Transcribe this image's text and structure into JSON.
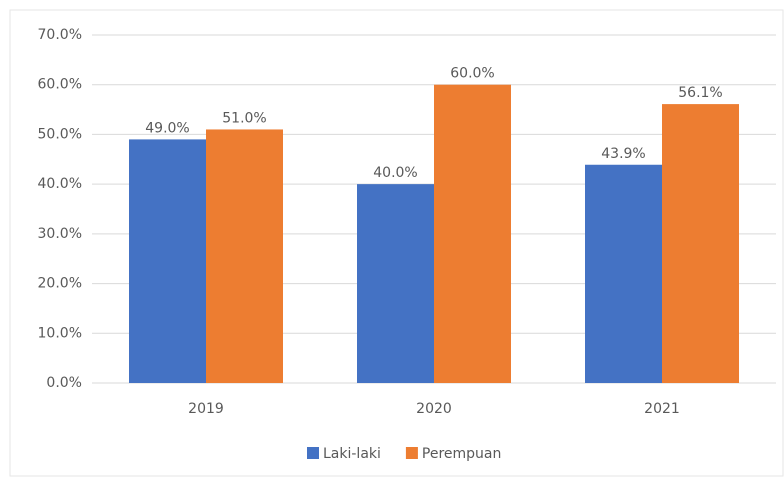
{
  "chart_data": {
    "type": "bar",
    "categories": [
      "2019",
      "2020",
      "2021"
    ],
    "series": [
      {
        "name": "Laki-laki",
        "color": "#4472c4",
        "values": [
          49.0,
          40.0,
          43.9
        ],
        "value_labels": [
          "49.0%",
          "40.0%",
          "43.9%"
        ]
      },
      {
        "name": "Perempuan",
        "color": "#ed7d31",
        "values": [
          51.0,
          60.0,
          56.1
        ],
        "value_labels": [
          "51.0%",
          "60.0%",
          "56.1%"
        ]
      }
    ],
    "ylim": [
      0,
      70
    ],
    "yticks": [
      {
        "value": 0,
        "label": "0.0%"
      },
      {
        "value": 10,
        "label": "10.0%"
      },
      {
        "value": 20,
        "label": "20.0%"
      },
      {
        "value": 30,
        "label": "30.0%"
      },
      {
        "value": 40,
        "label": "40.0%"
      },
      {
        "value": 50,
        "label": "50.0%"
      },
      {
        "value": 60,
        "label": "60.0%"
      },
      {
        "value": 70,
        "label": "70.0%"
      }
    ],
    "grid": true,
    "legend": "bottom"
  }
}
